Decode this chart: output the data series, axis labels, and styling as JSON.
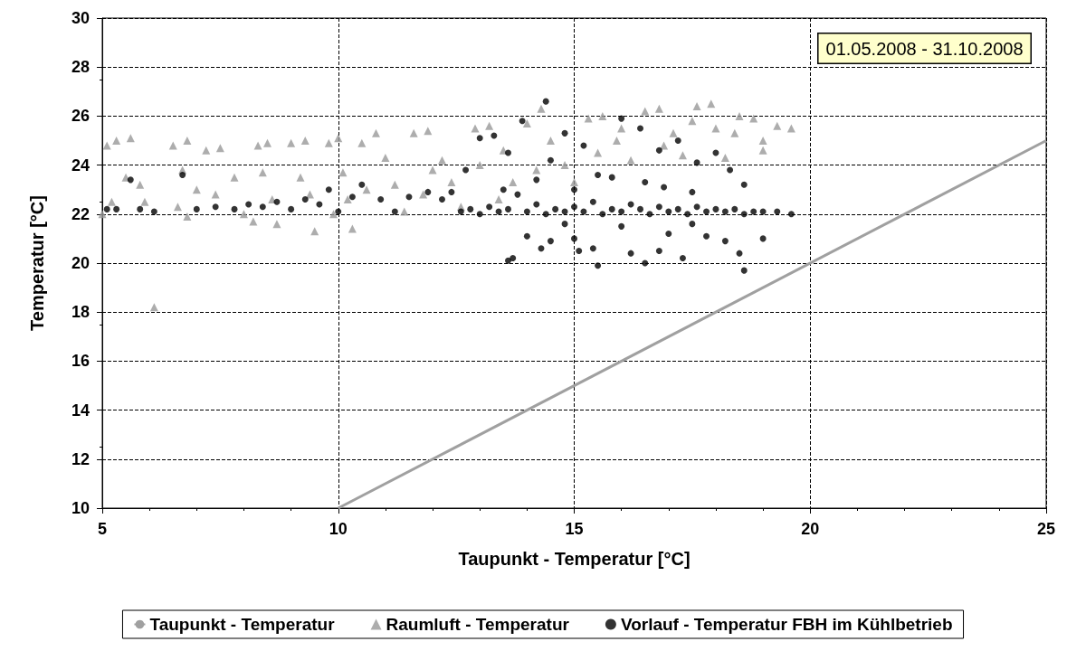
{
  "chart_data": {
    "type": "scatter",
    "xlabel": "Taupunkt - Temperatur [°C]",
    "ylabel": "Temperatur [°C]",
    "annotations": [
      "01.05.2008 - 31.10.2008"
    ],
    "xlim": [
      5,
      25
    ],
    "xticks": [
      5,
      10,
      15,
      20,
      25
    ],
    "ylim": [
      10,
      30
    ],
    "yticks": [
      10,
      12,
      14,
      16,
      18,
      20,
      22,
      24,
      26,
      28,
      30
    ],
    "grid": true,
    "legend": "bottom",
    "series": [
      {
        "name": "Taupunkt - Temperatur",
        "type": "line",
        "marker": "none",
        "color": "#a0a0a0",
        "x": [
          10,
          25
        ],
        "values": [
          10,
          25
        ]
      },
      {
        "name": "Raumluft - Temperatur",
        "marker": "triangle",
        "color": "#999999",
        "x": [
          5.1,
          5.3,
          5.6,
          5.2,
          5.0,
          5.5,
          5.8,
          5.9,
          6.1,
          6.5,
          6.8,
          6.7,
          6.6,
          6.8,
          7.2,
          7.5,
          7.4,
          7.8,
          8.0,
          8.3,
          8.5,
          8.4,
          8.6,
          8.7,
          9.0,
          9.3,
          9.2,
          9.4,
          9.5,
          9.8,
          10.0,
          10.1,
          10.2,
          10.3,
          10.5,
          10.8,
          11.0,
          11.2,
          11.4,
          11.6,
          11.9,
          12.2,
          12.4,
          12.6,
          12.9,
          13.2,
          13.5,
          13.7,
          14.0,
          14.3,
          14.5,
          14.8,
          15.0,
          15.3,
          15.6,
          15.9,
          16.2,
          16.5,
          16.8,
          17.1,
          17.3,
          17.6,
          17.9,
          18.0,
          18.2,
          18.5,
          18.8,
          19.0,
          19.3,
          19.6,
          19.0,
          15.5,
          16.9,
          13.0,
          11.8,
          9.9,
          8.2,
          7.0,
          13.4,
          14.2,
          16.0,
          17.5,
          12.0,
          10.6,
          18.4
        ],
        "values": [
          24.8,
          25.0,
          25.1,
          22.5,
          22.0,
          23.5,
          23.2,
          22.5,
          18.2,
          24.8,
          25.0,
          23.8,
          22.3,
          21.9,
          24.6,
          24.7,
          22.8,
          23.5,
          22.0,
          24.8,
          24.9,
          23.7,
          22.6,
          21.6,
          24.9,
          25.0,
          23.5,
          22.8,
          21.3,
          24.9,
          25.1,
          23.7,
          22.6,
          21.4,
          24.9,
          25.3,
          24.3,
          23.2,
          22.1,
          25.3,
          25.4,
          24.2,
          23.3,
          22.3,
          25.5,
          25.6,
          24.6,
          23.3,
          25.7,
          26.3,
          25.0,
          24.0,
          23.3,
          25.9,
          26.0,
          25.0,
          24.2,
          26.2,
          26.3,
          25.3,
          24.4,
          26.4,
          26.5,
          25.5,
          24.3,
          26.0,
          25.9,
          25.0,
          25.6,
          25.5,
          24.6,
          24.5,
          24.8,
          24.0,
          22.8,
          22.0,
          21.7,
          23.0,
          22.6,
          23.8,
          25.5,
          25.8,
          23.8,
          23.0,
          25.3
        ]
      },
      {
        "name": "Vorlauf - Temperatur FBH im Kühlbetrieb",
        "marker": "circle",
        "color": "#000000",
        "x": [
          5.1,
          5.3,
          5.6,
          5.8,
          6.1,
          6.7,
          7.0,
          7.4,
          7.8,
          8.1,
          8.4,
          8.7,
          9.0,
          9.3,
          9.6,
          9.8,
          10.0,
          10.3,
          10.5,
          10.9,
          11.2,
          11.5,
          11.9,
          12.2,
          12.4,
          12.6,
          12.8,
          13.0,
          13.2,
          13.4,
          13.6,
          13.8,
          14.0,
          14.2,
          14.4,
          14.6,
          14.8,
          15.0,
          15.2,
          15.4,
          15.6,
          15.8,
          16.0,
          16.2,
          16.4,
          16.6,
          16.8,
          17.0,
          17.2,
          17.4,
          17.6,
          17.8,
          18.0,
          18.2,
          18.4,
          18.6,
          18.8,
          19.0,
          19.3,
          19.6,
          12.7,
          13.0,
          13.3,
          13.6,
          13.9,
          14.4,
          14.5,
          14.8,
          15.2,
          15.5,
          16.0,
          16.4,
          16.8,
          17.2,
          17.6,
          18.0,
          18.3,
          14.2,
          15.0,
          16.5,
          17.5,
          18.6,
          13.5,
          15.8,
          16.9,
          13.6,
          13.7,
          14.0,
          14.3,
          14.5,
          15.0,
          15.1,
          15.4,
          15.5,
          16.2,
          16.5,
          16.8,
          17.0,
          17.3,
          17.8,
          18.2,
          18.6,
          18.5,
          19.0,
          14.8,
          16.0,
          17.5
        ],
        "values": [
          22.2,
          22.2,
          23.4,
          22.2,
          22.1,
          23.6,
          22.2,
          22.3,
          22.2,
          22.4,
          22.3,
          22.5,
          22.2,
          22.6,
          22.4,
          23.0,
          22.1,
          22.7,
          23.2,
          22.6,
          22.1,
          22.7,
          22.9,
          22.6,
          22.9,
          22.1,
          22.2,
          22.0,
          22.3,
          22.1,
          22.2,
          22.8,
          22.1,
          22.4,
          22.0,
          22.2,
          22.1,
          22.3,
          22.1,
          22.5,
          22.0,
          22.2,
          22.1,
          22.4,
          22.2,
          22.0,
          22.3,
          22.1,
          22.2,
          22.0,
          22.3,
          22.1,
          22.2,
          22.1,
          22.2,
          22.0,
          22.1,
          22.1,
          22.1,
          22.0,
          23.8,
          25.1,
          25.2,
          24.5,
          25.8,
          26.6,
          24.2,
          25.3,
          24.8,
          23.6,
          25.9,
          25.5,
          24.6,
          25.0,
          24.1,
          24.5,
          23.8,
          23.4,
          23.0,
          23.3,
          22.9,
          23.2,
          23.0,
          23.5,
          23.1,
          20.1,
          20.2,
          21.1,
          20.6,
          20.9,
          21.0,
          20.5,
          20.6,
          19.9,
          20.4,
          20.0,
          20.5,
          21.2,
          20.2,
          21.1,
          20.9,
          19.7,
          20.4,
          21.0,
          21.6,
          21.5,
          21.6
        ]
      }
    ]
  }
}
